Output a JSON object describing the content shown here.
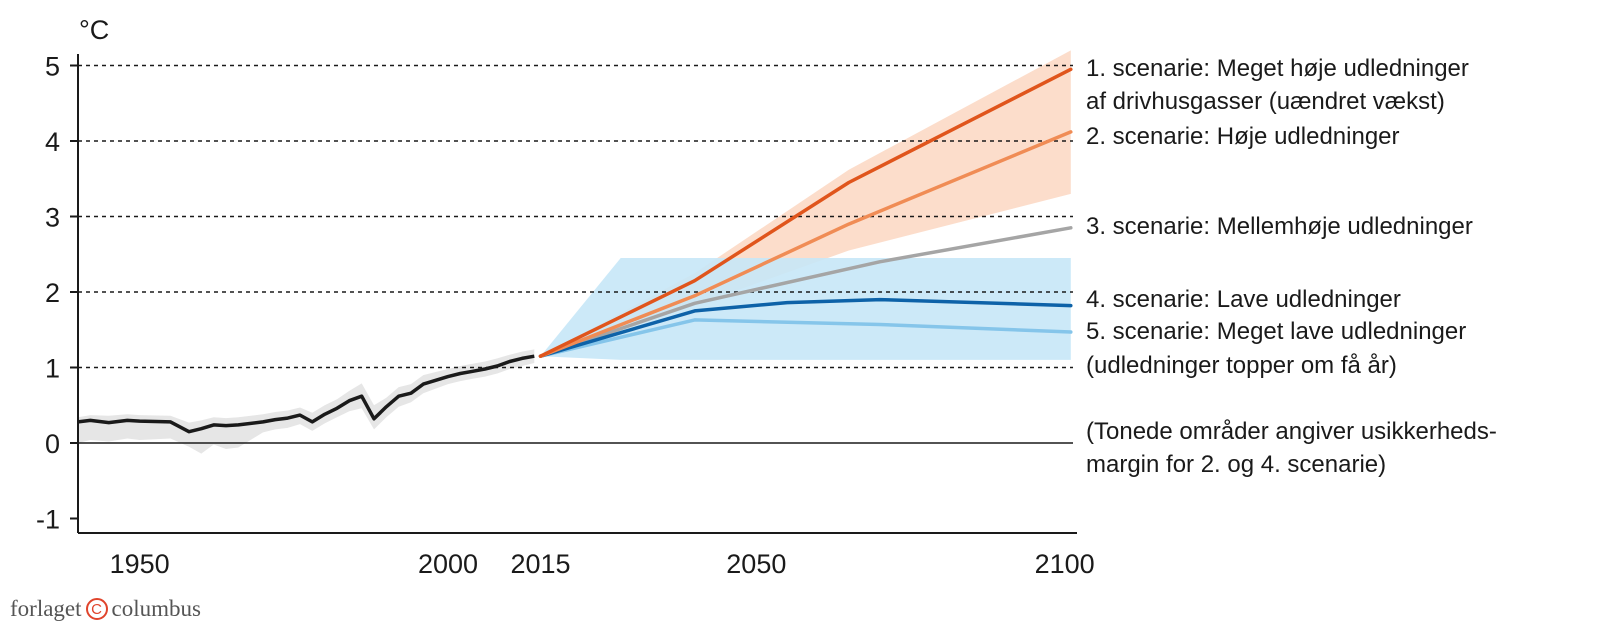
{
  "chart_data": {
    "type": "line",
    "unit_label": "°C",
    "xlim": [
      1940,
      2102
    ],
    "ylim": [
      -1.15,
      5.2
    ],
    "x_ticks": [
      {
        "value": 1950,
        "label": "1950"
      },
      {
        "value": 2000,
        "label": "2000"
      },
      {
        "value": 2015,
        "label": "2015"
      },
      {
        "value": 2050,
        "label": "2050"
      },
      {
        "value": 2100,
        "label": "2100"
      }
    ],
    "y_ticks": [
      {
        "value": 5,
        "label": "5"
      },
      {
        "value": 4,
        "label": "4"
      },
      {
        "value": 3,
        "label": "3"
      },
      {
        "value": 2,
        "label": "2"
      },
      {
        "value": 1,
        "label": "1"
      },
      {
        "value": 0,
        "label": "0"
      },
      {
        "value": -1,
        "label": "-1"
      }
    ],
    "reference_lines": [
      5,
      4,
      3,
      2,
      1
    ],
    "zero_line": 0,
    "historical": {
      "color": "#1a1a1a",
      "band_color": "#e6e6e6",
      "x": [
        1940,
        1942,
        1945,
        1948,
        1950,
        1955,
        1958,
        1960,
        1962,
        1964,
        1966,
        1970,
        1972,
        1974,
        1976,
        1978,
        1980,
        1982,
        1984,
        1986,
        1988,
        1990,
        1992,
        1994,
        1996,
        1998,
        2000,
        2002,
        2004,
        2006,
        2008,
        2010,
        2012,
        2014
      ],
      "y": [
        0.28,
        0.3,
        0.27,
        0.3,
        0.29,
        0.28,
        0.15,
        0.19,
        0.24,
        0.23,
        0.24,
        0.28,
        0.31,
        0.33,
        0.37,
        0.28,
        0.38,
        0.46,
        0.56,
        0.62,
        0.32,
        0.48,
        0.62,
        0.66,
        0.78,
        0.83,
        0.88,
        0.92,
        0.95,
        0.98,
        1.02,
        1.08,
        1.12,
        1.15
      ],
      "band_upper": [
        0.34,
        0.37,
        0.36,
        0.38,
        0.37,
        0.36,
        0.27,
        0.3,
        0.34,
        0.33,
        0.34,
        0.38,
        0.41,
        0.43,
        0.47,
        0.4,
        0.5,
        0.58,
        0.69,
        0.79,
        0.5,
        0.6,
        0.74,
        0.78,
        0.9,
        0.94,
        0.98,
        1.02,
        1.05,
        1.08,
        1.12,
        1.17,
        1.21,
        1.24
      ],
      "band_lower": [
        0.0,
        0.04,
        0.02,
        0.06,
        0.04,
        0.06,
        -0.05,
        -0.14,
        -0.02,
        -0.08,
        -0.06,
        0.14,
        0.18,
        0.2,
        0.25,
        0.16,
        0.26,
        0.34,
        0.42,
        0.46,
        0.18,
        0.34,
        0.48,
        0.54,
        0.66,
        0.72,
        0.78,
        0.82,
        0.85,
        0.88,
        0.92,
        0.98,
        1.02,
        1.06
      ]
    },
    "bands": [
      {
        "x": [
          2015,
          2040,
          2065,
          2101
        ],
        "upper": [
          1.15,
          2.25,
          3.62,
          5.2
        ],
        "lower": [
          1.15,
          1.82,
          2.55,
          3.3
        ],
        "color": "#fcd9c5"
      },
      {
        "x": [
          2015,
          2028,
          2101
        ],
        "upper": [
          1.15,
          2.45,
          2.45
        ],
        "lower": [
          1.15,
          1.1,
          1.1
        ],
        "color": "#c6e7f7"
      }
    ],
    "series": [
      {
        "name": "1. scenarie: Meget høje udledninger",
        "name_line2": "af drivhusgasser (uændret vækst)",
        "color": "#e0551c",
        "width": 3.5,
        "x": [
          2015,
          2040,
          2065,
          2101
        ],
        "y": [
          1.15,
          2.15,
          3.45,
          4.95
        ]
      },
      {
        "name": "2. scenarie: Høje udledninger",
        "color": "#f08c55",
        "width": 3.5,
        "x": [
          2015,
          2040,
          2065,
          2101
        ],
        "y": [
          1.15,
          1.95,
          2.9,
          4.12
        ]
      },
      {
        "name": "3. scenarie: Mellemhøje udledninger",
        "color": "#a5a5a5",
        "width": 3.5,
        "x": [
          2015,
          2040,
          2070,
          2101
        ],
        "y": [
          1.15,
          1.85,
          2.4,
          2.85
        ]
      },
      {
        "name": "4. scenarie: Lave udledninger",
        "color": "#0d62a8",
        "width": 3.5,
        "x": [
          2015,
          2040,
          2055,
          2070,
          2101
        ],
        "y": [
          1.15,
          1.75,
          1.86,
          1.9,
          1.82
        ]
      },
      {
        "name": "5. scenarie: Meget lave udledninger",
        "name_line2": "(udledninger topper om få år)",
        "color": "#85c5ea",
        "width": 3.5,
        "x": [
          2015,
          2040,
          2070,
          2101
        ],
        "y": [
          1.15,
          1.63,
          1.57,
          1.47
        ]
      }
    ],
    "note": {
      "line1": "(Tonede områder angiver usikkerheds-",
      "line2": "margin for 2. og 4. scenarie)"
    }
  },
  "footer": {
    "publisher_left": "forlaget",
    "copyright_mark": "C",
    "publisher_right": "columbus"
  }
}
